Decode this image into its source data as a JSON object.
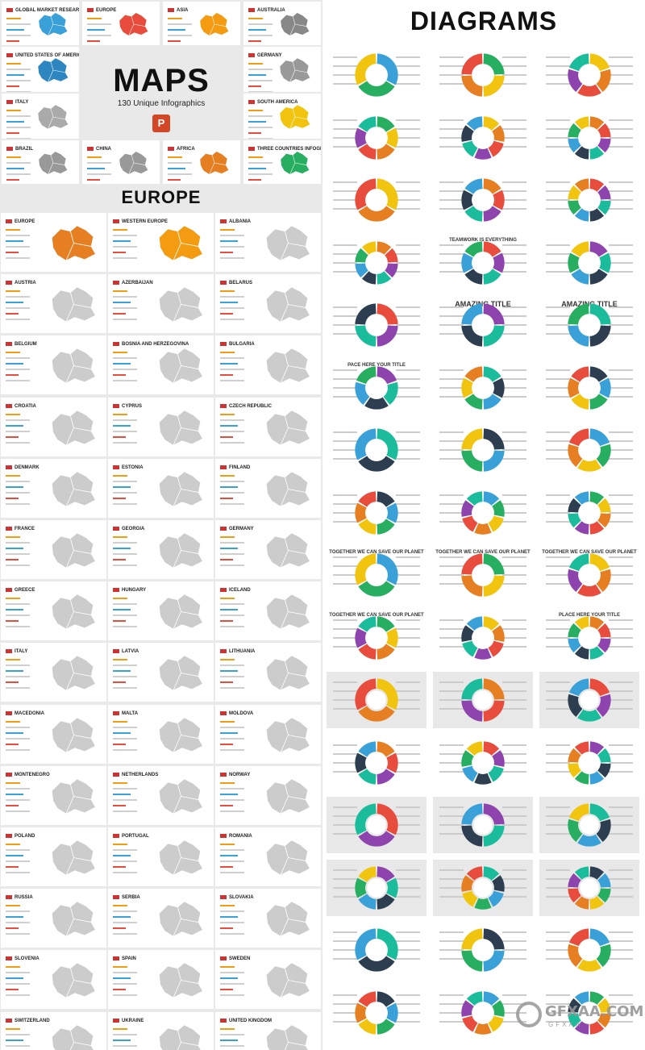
{
  "maps": {
    "title": "MAPS",
    "subtitle": "130 Unique Infographics",
    "app_icon": "powerpoint-icon",
    "top_cards": [
      {
        "label": "GLOBAL MARKET RESEARCH",
        "color": "#3aa0d8"
      },
      {
        "label": "EUROPE",
        "color": "#e74c3c"
      },
      {
        "label": "ASIA",
        "color": "#f39c12"
      },
      {
        "label": "AUSTRALIA",
        "color": "#888888"
      },
      {
        "label": "UNITED STATES OF AMERICA",
        "color": "#2e86c1"
      },
      {
        "label": "GERMANY",
        "color": "#999999"
      },
      {
        "label": "ITALY",
        "color": "#aaaaaa"
      },
      {
        "label": "SOUTH AMERICA",
        "color": "#f1c40f"
      },
      {
        "label": "BRAZIL",
        "color": "#999999"
      },
      {
        "label": "CHINA",
        "color": "#999999"
      },
      {
        "label": "AFRICA",
        "color": "#e67e22"
      },
      {
        "label": "THREE COUNTRIES INFOGRAPHIC",
        "color": "#27ae60"
      }
    ]
  },
  "europe": {
    "title": "EUROPE",
    "cards": [
      {
        "label": "EUROPE",
        "color": "#e67e22"
      },
      {
        "label": "WESTERN EUROPE",
        "color": "#f39c12"
      },
      {
        "label": "ALBANIA",
        "color": "#cccccc"
      },
      {
        "label": "AUSTRIA",
        "color": "#cccccc"
      },
      {
        "label": "AZERBAIJAN",
        "color": "#cccccc"
      },
      {
        "label": "BELARUS",
        "color": "#cccccc"
      },
      {
        "label": "BELGIUM",
        "color": "#cccccc"
      },
      {
        "label": "BOSNIA AND HERZEGOVINA",
        "color": "#cccccc"
      },
      {
        "label": "BULGARIA",
        "color": "#cccccc"
      },
      {
        "label": "CROATIA",
        "color": "#cccccc"
      },
      {
        "label": "CYPRUS",
        "color": "#cccccc"
      },
      {
        "label": "CZECH REPUBLIC",
        "color": "#cccccc"
      },
      {
        "label": "DENMARK",
        "color": "#cccccc"
      },
      {
        "label": "ESTONIA",
        "color": "#cccccc"
      },
      {
        "label": "FINLAND",
        "color": "#cccccc"
      },
      {
        "label": "FRANCE",
        "color": "#cccccc"
      },
      {
        "label": "GEORGIA",
        "color": "#cccccc"
      },
      {
        "label": "GERMANY",
        "color": "#cccccc"
      },
      {
        "label": "GREECE",
        "color": "#cccccc"
      },
      {
        "label": "HUNGARY",
        "color": "#cccccc"
      },
      {
        "label": "ICELAND",
        "color": "#cccccc"
      },
      {
        "label": "ITALY",
        "color": "#cccccc"
      },
      {
        "label": "LATVIA",
        "color": "#cccccc"
      },
      {
        "label": "LITHUANIA",
        "color": "#cccccc"
      },
      {
        "label": "MACEDONIA",
        "color": "#cccccc"
      },
      {
        "label": "MALTA",
        "color": "#cccccc"
      },
      {
        "label": "MOLDOVA",
        "color": "#cccccc"
      },
      {
        "label": "MONTENEGRO",
        "color": "#cccccc"
      },
      {
        "label": "NETHERLANDS",
        "color": "#cccccc"
      },
      {
        "label": "NORWAY",
        "color": "#cccccc"
      },
      {
        "label": "POLAND",
        "color": "#cccccc"
      },
      {
        "label": "PORTUGAL",
        "color": "#cccccc"
      },
      {
        "label": "ROMANIA",
        "color": "#cccccc"
      },
      {
        "label": "RUSSIA",
        "color": "#cccccc"
      },
      {
        "label": "SERBIA",
        "color": "#cccccc"
      },
      {
        "label": "SLOVAKIA",
        "color": "#cccccc"
      },
      {
        "label": "SLOVENIA",
        "color": "#cccccc"
      },
      {
        "label": "SPAIN",
        "color": "#cccccc"
      },
      {
        "label": "SWEDEN",
        "color": "#cccccc"
      },
      {
        "label": "SWITZERLAND",
        "color": "#cccccc"
      },
      {
        "label": "UKRAINE",
        "color": "#cccccc"
      },
      {
        "label": "UNITED KINGDOM",
        "color": "#cccccc"
      }
    ]
  },
  "diagrams": {
    "title": "DIAGRAMS",
    "rows": [
      {
        "style": "plain",
        "titles": [
          "",
          "",
          ""
        ],
        "segments": [
          3,
          4,
          5
        ]
      },
      {
        "style": "plain",
        "titles": [
          "",
          "",
          ""
        ],
        "segments": [
          6,
          7,
          8
        ]
      },
      {
        "style": "plain",
        "titles": [
          "",
          "",
          ""
        ],
        "segments": [
          3,
          6,
          8
        ]
      },
      {
        "style": "plain",
        "titles": [
          "",
          "TEAMWORK IS EVERYTHING",
          ""
        ],
        "segments": [
          8,
          6,
          6
        ]
      },
      {
        "style": "plain",
        "titles": [
          "",
          "AMAZING TITLE",
          "AMAZING TITLE"
        ],
        "segments": [
          4,
          4,
          4
        ]
      },
      {
        "style": "plain",
        "titles": [
          "PACE HERE YOUR TITLE",
          "",
          ""
        ],
        "segments": [
          5,
          6,
          6
        ]
      },
      {
        "style": "plain",
        "titles": [
          "",
          "",
          ""
        ],
        "segments": [
          3,
          4,
          5
        ]
      },
      {
        "style": "plain",
        "titles": [
          "",
          "",
          ""
        ],
        "segments": [
          6,
          7,
          8
        ]
      },
      {
        "style": "plain",
        "titles": [
          "TOGETHER WE CAN SAVE OUR PLANET",
          "TOGETHER WE CAN SAVE OUR PLANET",
          "TOGETHER WE CAN SAVE OUR PLANET"
        ],
        "segments": [
          3,
          4,
          5
        ]
      },
      {
        "style": "plain",
        "titles": [
          "TOGETHER WE CAN SAVE OUR PLANET",
          "",
          "PLACE HERE YOUR TITLE"
        ],
        "segments": [
          6,
          7,
          8
        ]
      },
      {
        "style": "gray",
        "titles": [
          "",
          "",
          ""
        ],
        "segments": [
          3,
          4,
          5
        ]
      },
      {
        "style": "plain",
        "titles": [
          "",
          "",
          ""
        ],
        "segments": [
          6,
          7,
          8
        ]
      },
      {
        "style": "gray",
        "titles": [
          "",
          "",
          ""
        ],
        "segments": [
          3,
          4,
          5
        ]
      },
      {
        "style": "gray",
        "titles": [
          "",
          "",
          ""
        ],
        "segments": [
          6,
          7,
          8
        ]
      },
      {
        "style": "plain",
        "titles": [
          "",
          "",
          ""
        ],
        "segments": [
          3,
          4,
          5
        ]
      },
      {
        "style": "plain",
        "titles": [
          "",
          "",
          ""
        ],
        "segments": [
          6,
          7,
          8
        ]
      }
    ],
    "palette": [
      "#3aa0d8",
      "#27ae60",
      "#f1c40f",
      "#e67e22",
      "#e74c3c",
      "#8e44ad",
      "#1abc9c",
      "#2c3e50"
    ]
  },
  "watermark": {
    "text": "GFXAA.COM",
    "sub": "GFXAA"
  }
}
